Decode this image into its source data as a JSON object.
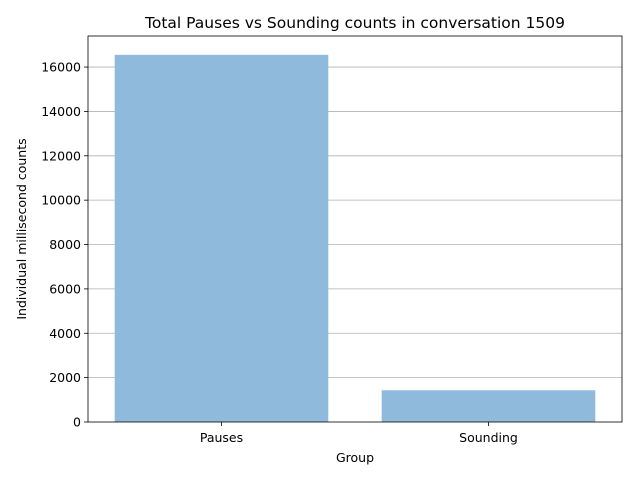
{
  "chart_data": {
    "type": "bar",
    "title": "Total Pauses vs Sounding counts in conversation 1509",
    "xlabel": "Group",
    "ylabel": "Individual millisecond counts",
    "categories": [
      "Pauses",
      "Sounding"
    ],
    "values": [
      16550,
      1430
    ],
    "ylim": [
      0,
      17400
    ],
    "yticks": [
      0,
      2000,
      4000,
      6000,
      8000,
      10000,
      12000,
      14000,
      16000
    ],
    "grid": "y",
    "bar_color": "#8fbadb"
  }
}
